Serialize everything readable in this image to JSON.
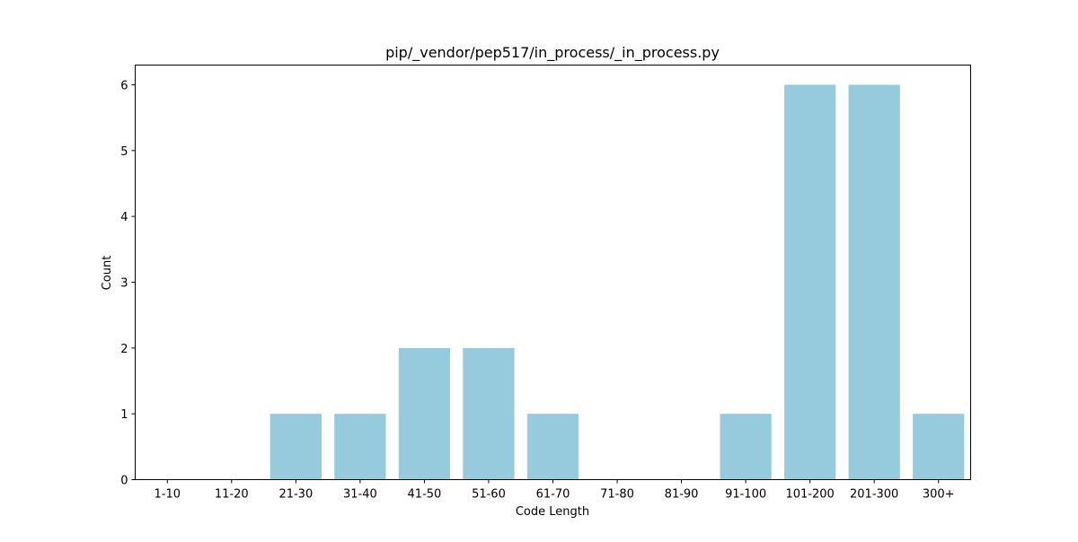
{
  "chart_data": {
    "type": "bar",
    "title": "pip/_vendor/pep517/in_process/_in_process.py",
    "xlabel": "Code Length",
    "ylabel": "Count",
    "categories": [
      "1-10",
      "11-20",
      "21-30",
      "31-40",
      "41-50",
      "51-60",
      "61-70",
      "71-80",
      "81-90",
      "91-100",
      "101-200",
      "201-300",
      "300+"
    ],
    "values": [
      0,
      0,
      1,
      1,
      2,
      2,
      1,
      0,
      0,
      1,
      6,
      6,
      1
    ],
    "ylim": [
      0,
      6.3
    ],
    "yticks": [
      0,
      1,
      2,
      3,
      4,
      5,
      6
    ],
    "bar_color": "#96cadd",
    "grid": false,
    "legend": false
  }
}
